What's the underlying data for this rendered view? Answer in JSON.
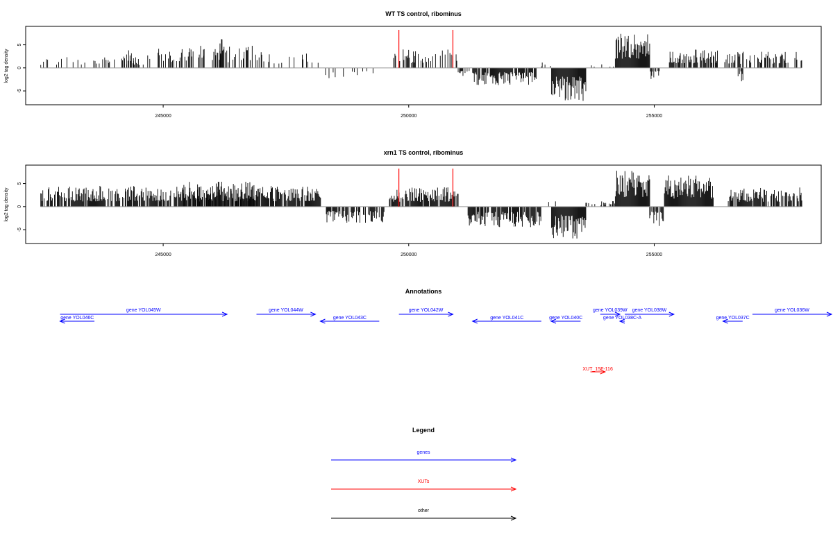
{
  "chart_data": [
    {
      "type": "bar",
      "title": "WT TS control, ribominus",
      "ylabel": "log2 tag density",
      "xlabel": "",
      "xlim": [
        242200,
        258400
      ],
      "ylim": [
        -8,
        9
      ],
      "x_ticks": [
        245000,
        250000,
        255000
      ],
      "y_ticks": [
        -5,
        0,
        5
      ],
      "markers": [
        {
          "x": 249800,
          "color": "#ff0000"
        },
        {
          "x": 250900,
          "color": "#ff0000"
        }
      ],
      "segments": [
        {
          "from": 242500,
          "to": 244600,
          "sign": 1,
          "max": 2.5,
          "density": 0.25
        },
        {
          "from": 244150,
          "to": 244400,
          "sign": 1,
          "max": 4.4,
          "density": 0.7
        },
        {
          "from": 244650,
          "to": 247000,
          "sign": 1,
          "max": 4.8,
          "density": 0.35
        },
        {
          "from": 245800,
          "to": 246200,
          "sign": 1,
          "max": 6.3,
          "density": 0.4
        },
        {
          "from": 247000,
          "to": 248200,
          "sign": 1,
          "max": 3.4,
          "density": 0.25
        },
        {
          "from": 248300,
          "to": 249500,
          "sign": -1,
          "max": 2.6,
          "density": 0.15
        },
        {
          "from": 249600,
          "to": 251000,
          "sign": 1,
          "max": 4.0,
          "density": 0.4
        },
        {
          "from": 251000,
          "to": 251300,
          "sign": -1,
          "max": 2.0,
          "density": 0.3
        },
        {
          "from": 251300,
          "to": 252600,
          "sign": -1,
          "max": 3.8,
          "density": 0.85
        },
        {
          "from": 252600,
          "to": 252900,
          "sign": 1,
          "max": 1.2,
          "density": 0.2
        },
        {
          "from": 252900,
          "to": 253600,
          "sign": -1,
          "max": 7.2,
          "density": 1.0
        },
        {
          "from": 253700,
          "to": 254200,
          "sign": 1,
          "max": 1.0,
          "density": 0.2
        },
        {
          "from": 254200,
          "to": 254900,
          "sign": 1,
          "max": 8.0,
          "density": 1.0
        },
        {
          "from": 254900,
          "to": 255100,
          "sign": -1,
          "max": 2.5,
          "density": 0.5
        },
        {
          "from": 255300,
          "to": 256300,
          "sign": 1,
          "max": 4.0,
          "density": 0.7
        },
        {
          "from": 256400,
          "to": 258000,
          "sign": 1,
          "max": 3.5,
          "density": 0.45
        },
        {
          "from": 256700,
          "to": 256800,
          "sign": -1,
          "max": 3.0,
          "density": 0.5
        }
      ]
    },
    {
      "type": "bar",
      "title": "xrn1 TS control, ribominus",
      "ylabel": "log2 tag density",
      "xlabel": "",
      "xlim": [
        242200,
        258400
      ],
      "ylim": [
        -8,
        9
      ],
      "x_ticks": [
        245000,
        250000,
        255000
      ],
      "y_ticks": [
        -5,
        0,
        5
      ],
      "markers": [
        {
          "x": 249800,
          "color": "#ff0000"
        },
        {
          "x": 250900,
          "color": "#ff0000"
        }
      ],
      "segments": [
        {
          "from": 242500,
          "to": 248200,
          "sign": 1,
          "max": 4.5,
          "density": 0.8
        },
        {
          "from": 245400,
          "to": 246900,
          "sign": 1,
          "max": 5.5,
          "density": 0.6
        },
        {
          "from": 248300,
          "to": 249500,
          "sign": -1,
          "max": 3.6,
          "density": 0.8
        },
        {
          "from": 249600,
          "to": 251000,
          "sign": 1,
          "max": 4.2,
          "density": 0.9
        },
        {
          "from": 251200,
          "to": 252700,
          "sign": -1,
          "max": 4.5,
          "density": 0.85
        },
        {
          "from": 252800,
          "to": 253000,
          "sign": 1,
          "max": 1.2,
          "density": 0.2
        },
        {
          "from": 252900,
          "to": 253600,
          "sign": -1,
          "max": 7.0,
          "density": 1.0
        },
        {
          "from": 253600,
          "to": 254200,
          "sign": 1,
          "max": 1.2,
          "density": 0.3
        },
        {
          "from": 254200,
          "to": 254900,
          "sign": 1,
          "max": 8.0,
          "density": 1.0
        },
        {
          "from": 254900,
          "to": 255200,
          "sign": -1,
          "max": 4.2,
          "density": 0.6
        },
        {
          "from": 255200,
          "to": 256200,
          "sign": 1,
          "max": 6.8,
          "density": 1.0
        },
        {
          "from": 256500,
          "to": 258000,
          "sign": 1,
          "max": 4.2,
          "density": 0.75
        }
      ]
    }
  ],
  "annotations": {
    "title": "Annotations",
    "features": [
      {
        "label": "gene YOL046C",
        "start": 242900,
        "end": 243600,
        "strand": "-",
        "row": 1,
        "kind": "gene"
      },
      {
        "label": "gene YOL045W",
        "start": 242900,
        "end": 246300,
        "strand": "+",
        "row": 0,
        "kind": "gene"
      },
      {
        "label": "gene YOL044W",
        "start": 246900,
        "end": 248100,
        "strand": "+",
        "row": 0,
        "kind": "gene"
      },
      {
        "label": "gene YOL043C",
        "start": 248200,
        "end": 249400,
        "strand": "-",
        "row": 1,
        "kind": "gene"
      },
      {
        "label": "gene YOL042W",
        "start": 249800,
        "end": 250900,
        "strand": "+",
        "row": 0,
        "kind": "gene"
      },
      {
        "label": "gene YOL041C",
        "start": 251300,
        "end": 252700,
        "strand": "-",
        "row": 1,
        "kind": "gene"
      },
      {
        "label": "gene YOL040C",
        "start": 252900,
        "end": 253500,
        "strand": "-",
        "row": 1,
        "kind": "gene"
      },
      {
        "label": "gene YOL039W",
        "start": 253900,
        "end": 254300,
        "strand": "+",
        "row": 0,
        "kind": "gene"
      },
      {
        "label": "gene YOL038C-A",
        "start": 254300,
        "end": 254400,
        "strand": "-",
        "row": 1,
        "kind": "gene"
      },
      {
        "label": "gene YOL038W",
        "start": 254400,
        "end": 255400,
        "strand": "+",
        "row": 0,
        "kind": "gene"
      },
      {
        "label": "gene YOL037C",
        "start": 256400,
        "end": 256800,
        "strand": "-",
        "row": 1,
        "kind": "gene"
      },
      {
        "label": "gene YOL036W",
        "start": 257000,
        "end": 258700,
        "strand": "+",
        "row": 0,
        "kind": "gene"
      },
      {
        "label": "XUT_15F-116",
        "start": 253700,
        "end": 254000,
        "strand": "+",
        "row": 2,
        "kind": "xut"
      }
    ]
  },
  "legend": {
    "title": "Legend",
    "items": [
      {
        "label": "genes",
        "color": "#0000ff"
      },
      {
        "label": "XUTs",
        "color": "#ff0000"
      },
      {
        "label": "other",
        "color": "#000000"
      }
    ]
  },
  "colors": {
    "gene": "#0000ff",
    "xut": "#ff0000",
    "other": "#000000",
    "marker": "#ff0000",
    "axis": "#000000",
    "baseline": "#999999"
  }
}
